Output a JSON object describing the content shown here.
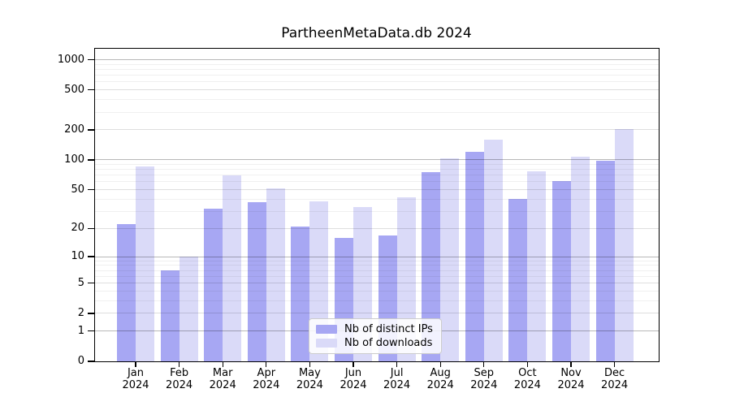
{
  "chart_data": {
    "type": "bar",
    "title": "PartheenMetaData.db 2024",
    "categories": [
      "Jan",
      "Feb",
      "Mar",
      "Apr",
      "May",
      "Jun",
      "Jul",
      "Aug",
      "Sep",
      "Oct",
      "Nov",
      "Dec"
    ],
    "category_sublabel": "2024",
    "series": [
      {
        "name": "Nb of distinct IPs",
        "color": "#a7a7f3",
        "values": [
          22,
          7,
          32,
          37,
          21,
          16,
          17,
          75,
          120,
          40,
          61,
          97
        ]
      },
      {
        "name": "Nb of downloads",
        "color": "#dadaf8",
        "values": [
          86,
          10,
          70,
          52,
          38,
          33,
          42,
          103,
          158,
          76,
          108,
          203
        ]
      }
    ],
    "yscale": "log10(1+value)",
    "ylim": [
      0,
      1320
    ],
    "yticks_labeled": [
      0,
      1,
      2,
      5,
      10,
      20,
      50,
      100,
      200,
      500,
      1000
    ],
    "gridlines": {
      "major": [
        1,
        10,
        100,
        1000
      ],
      "mid": [
        2,
        5,
        20,
        50,
        200,
        500
      ],
      "minor": [
        3,
        4,
        6,
        7,
        8,
        9,
        30,
        40,
        60,
        70,
        80,
        90,
        300,
        400,
        600,
        700,
        800,
        900
      ]
    },
    "grid": true,
    "legend_position": "lower center",
    "axis_color": "#000000",
    "grid_major_color": "#b8b8b8",
    "grid_mid_color": "#e0e0e0",
    "grid_minor_color": "#f0f0f0",
    "background_color": "#ffffff"
  }
}
